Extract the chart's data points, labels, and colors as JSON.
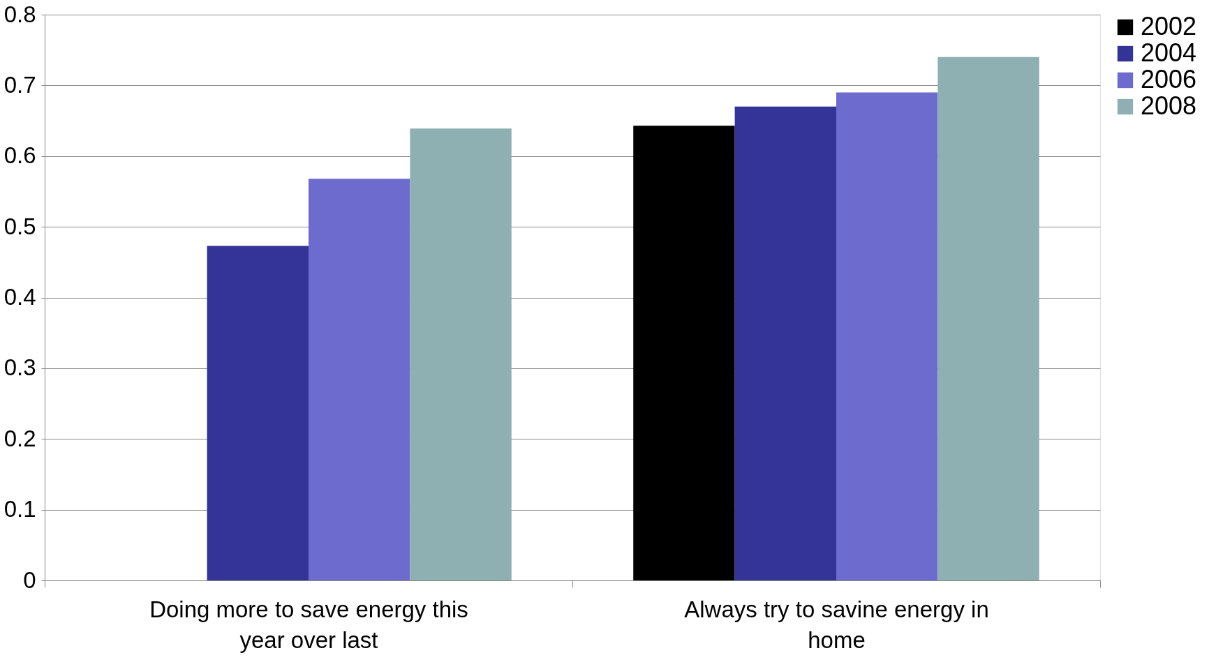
{
  "chart_data": {
    "type": "bar",
    "categories": [
      "Doing more to save energy this year over last",
      "Always try to savine energy in home"
    ],
    "series": [
      {
        "name": "2002",
        "color": "#000000",
        "values": [
          null,
          0.643
        ]
      },
      {
        "name": "2004",
        "color": "#343397",
        "values": [
          0.473,
          0.67
        ]
      },
      {
        "name": "2006",
        "color": "#6d6bce",
        "values": [
          0.568,
          0.69
        ]
      },
      {
        "name": "2008",
        "color": "#8fb0b3",
        "values": [
          0.639,
          0.74
        ]
      }
    ],
    "ylim": [
      0,
      0.8
    ],
    "yticks": [
      0,
      0.1,
      0.2,
      0.3,
      0.4,
      0.5,
      0.6,
      0.7,
      0.8
    ],
    "grid": "y",
    "legend": "right"
  }
}
